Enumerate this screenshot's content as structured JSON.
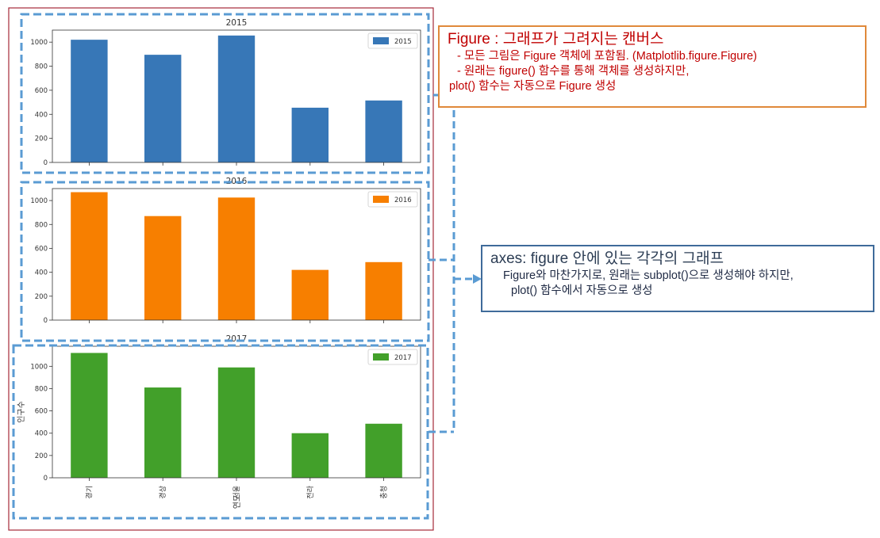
{
  "figure_callout": {
    "title": "Figure : 그래프가 그려지는 캔버스",
    "lines": [
      "- 모든 그림은 Figure 객체에 포함됨. (Matplotlib.figure.Figure)",
      "- 원래는 figure() 함수를 통해 객체를 생성하지만,",
      "plot() 함수는 자동으로 Figure 생성"
    ]
  },
  "axes_callout": {
    "title": "axes: figure 안에 있는 각각의 그래프",
    "lines": [
      "Figure와 마찬가지로, 원래는 subplot()으로 생성해야 하지만,",
      "plot() 함수에서 자동으로 생성"
    ]
  },
  "colors": {
    "figure_border": "#a52a3a",
    "axes_dash": "#5a9bd3",
    "figure_callout_border": "#e0893a",
    "axes_callout_border": "#3f6b9a"
  },
  "chart_data": [
    {
      "type": "bar",
      "title": "2015",
      "categories": [
        "경기",
        "경상",
        "서울",
        "전라",
        "충청"
      ],
      "series": [
        {
          "name": "2015",
          "color": "#3777b7",
          "values": [
            1020,
            895,
            1055,
            455,
            515
          ]
        }
      ],
      "ylim": [
        0,
        1100
      ],
      "yticks": [
        0,
        200,
        400,
        600,
        800,
        1000
      ],
      "legend": "top-right",
      "grid": false,
      "xlabel": "",
      "ylabel": ""
    },
    {
      "type": "bar",
      "title": "2016",
      "categories": [
        "경기",
        "경상",
        "서울",
        "전라",
        "충청"
      ],
      "series": [
        {
          "name": "2016",
          "color": "#f77f00",
          "values": [
            1070,
            870,
            1025,
            420,
            485
          ]
        }
      ],
      "ylim": [
        0,
        1100
      ],
      "yticks": [
        0,
        200,
        400,
        600,
        800,
        1000
      ],
      "legend": "top-right",
      "grid": false,
      "xlabel": "",
      "ylabel": ""
    },
    {
      "type": "bar",
      "title": "2017",
      "categories": [
        "경기",
        "경상",
        "서울",
        "전라",
        "충청"
      ],
      "series": [
        {
          "name": "2017",
          "color": "#42a02a",
          "values": [
            1120,
            810,
            990,
            400,
            485
          ]
        }
      ],
      "ylim": [
        0,
        1180
      ],
      "yticks": [
        0,
        200,
        400,
        600,
        800,
        1000
      ],
      "legend": "top-right",
      "grid": false,
      "xlabel": "연도",
      "ylabel": "인구수"
    }
  ]
}
